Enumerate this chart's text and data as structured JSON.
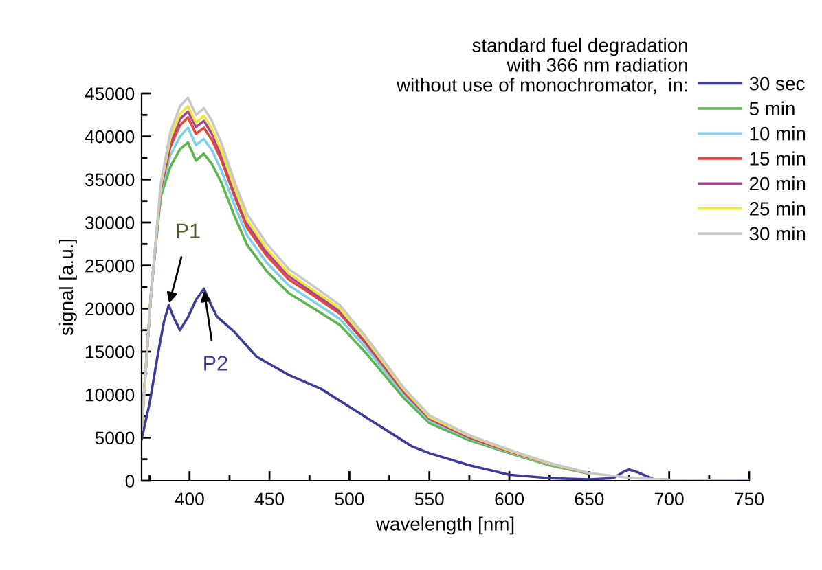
{
  "chart_data": {
    "type": "line",
    "xlabel": "wavelength [nm]",
    "ylabel": "signal [a.u.]",
    "legend_title": "standard fuel degradation\nwith 366 nm radiation\nwithout use of monochromator,  in:",
    "legend": "top right",
    "grid": false,
    "marker": "none",
    "line_style": "solid",
    "xlim": [
      370,
      750
    ],
    "xticks": [
      400,
      450,
      500,
      550,
      600,
      650,
      700,
      750
    ],
    "ylim": [
      0,
      45000
    ],
    "yticks": [
      0,
      5000,
      10000,
      15000,
      20000,
      25000,
      30000,
      35000,
      40000,
      45000
    ],
    "annotations": [
      {
        "text": "P1",
        "x": 387,
        "y": 20400
      },
      {
        "text": "P2",
        "x": 409,
        "y": 22300
      }
    ],
    "x": [
      370,
      376,
      382,
      388,
      394,
      399,
      404,
      409,
      414,
      420,
      428,
      436,
      448,
      462,
      476,
      494,
      510,
      534,
      550,
      575,
      600,
      625,
      650,
      675,
      700,
      725,
      750
    ],
    "series": [
      {
        "name": "30 sec",
        "color": "#3f3c99",
        "x": [
          370,
          375,
          380,
          384,
          387,
          390,
          394,
          399,
          404,
          409,
          412,
          417,
          428,
          442,
          462,
          482,
          505,
          539,
          550,
          575,
          600,
          625,
          650,
          665,
          672,
          675,
          680,
          690,
          700,
          750
        ],
        "values": [
          4800,
          9000,
          14500,
          18500,
          20400,
          19000,
          17500,
          19000,
          21000,
          22300,
          21000,
          19100,
          17300,
          14400,
          12300,
          10700,
          8000,
          4000,
          3200,
          1800,
          700,
          300,
          150,
          300,
          1100,
          1300,
          1000,
          200,
          100,
          50
        ]
      },
      {
        "name": "5 min",
        "color": "#5ab54a",
        "values": [
          6000,
          22000,
          33000,
          36500,
          38500,
          39300,
          37200,
          38000,
          36800,
          34600,
          30800,
          27400,
          24400,
          21800,
          20200,
          18100,
          14900,
          9600,
          6700,
          4700,
          3200,
          1800,
          800,
          null,
          null,
          null,
          null
        ]
      },
      {
        "name": "10 min",
        "color": "#7fd0e6",
        "values": [
          6000,
          22000,
          33500,
          37800,
          40000,
          41000,
          39000,
          39700,
          38400,
          36000,
          32100,
          28500,
          25400,
          22700,
          21000,
          18800,
          15500,
          10000,
          7000,
          4900,
          3300,
          1900,
          850,
          null,
          null,
          null,
          null
        ]
      },
      {
        "name": "15 min",
        "color": "#e8453c",
        "values": [
          6000,
          22000,
          33800,
          38800,
          41300,
          42200,
          40300,
          41000,
          39600,
          37200,
          33100,
          29400,
          26200,
          23400,
          21700,
          19400,
          16000,
          10300,
          7200,
          5000,
          3400,
          1950,
          870,
          null,
          null,
          null,
          null
        ]
      },
      {
        "name": "20 min",
        "color": "#a0479a",
        "values": [
          6000,
          22000,
          34000,
          39300,
          42000,
          42900,
          41100,
          41800,
          40300,
          37800,
          33600,
          29900,
          26600,
          23800,
          22000,
          19700,
          16200,
          10500,
          7300,
          5100,
          3500,
          2000,
          880,
          null,
          null,
          null,
          null
        ]
      },
      {
        "name": "25 min",
        "color": "#f2e63a",
        "values": [
          6000,
          22000,
          34200,
          39800,
          42600,
          43500,
          41600,
          42400,
          40900,
          38300,
          34100,
          30300,
          27000,
          24100,
          22300,
          20000,
          16500,
          10600,
          7400,
          5200,
          3500,
          2000,
          890,
          null,
          null,
          null,
          null
        ]
      },
      {
        "name": "30 min",
        "color": "#c8c8c8",
        "values": [
          6000,
          22000,
          34500,
          40500,
          43500,
          44500,
          42500,
          43300,
          41800,
          39200,
          34800,
          31000,
          27600,
          24600,
          22800,
          20400,
          16800,
          10800,
          7600,
          5300,
          3600,
          2050,
          900,
          340,
          110,
          30,
          0
        ]
      }
    ]
  }
}
